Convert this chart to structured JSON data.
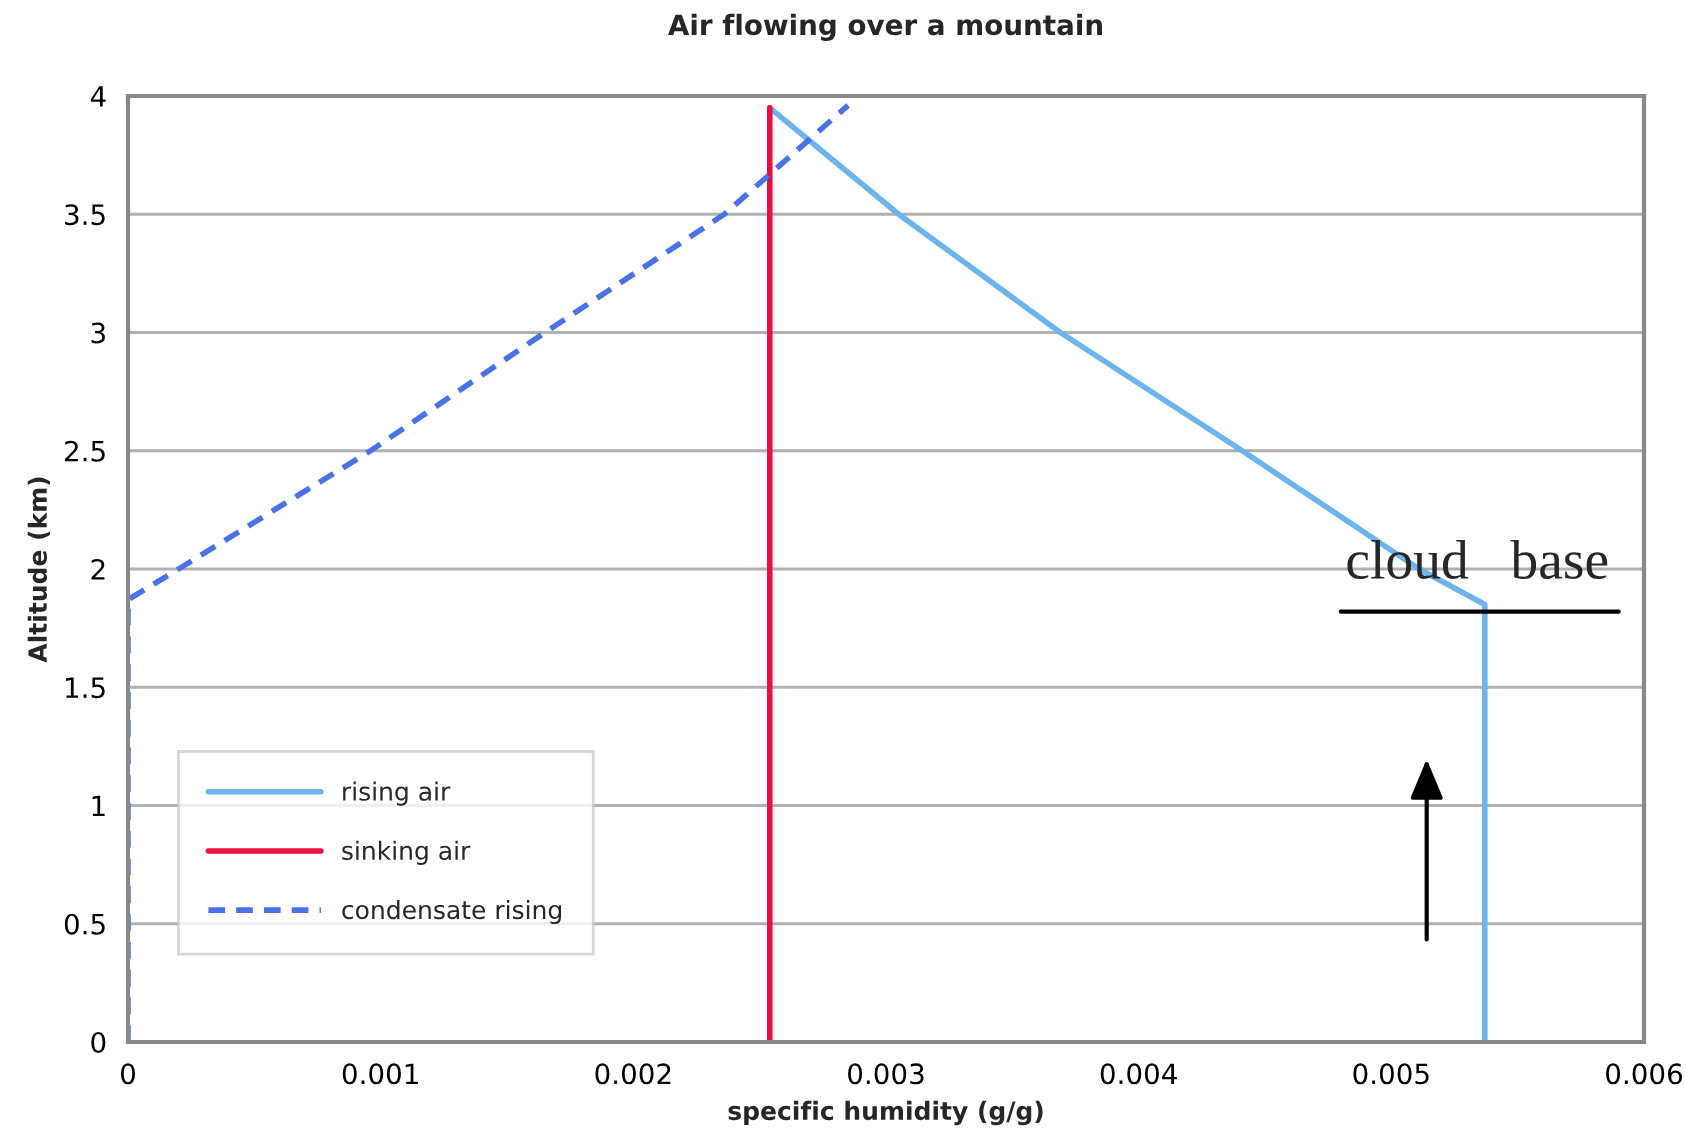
{
  "chart_data": {
    "type": "line",
    "title": "Air flowing over a mountain",
    "xlabel": "specific humidity (g/g)",
    "ylabel": "Altitude (km)",
    "series": [
      {
        "name": "rising air",
        "color": "#6cb4ee",
        "line_style": "solid",
        "x": [
          0.00537,
          0.00537,
          0.00511,
          0.00441,
          0.00369,
          0.00305,
          0.00254
        ],
        "values": [
          0,
          1.85,
          2.0,
          2.5,
          3.0,
          3.5,
          3.95
        ]
      },
      {
        "name": "sinking air",
        "color": "#e8103c",
        "line_style": "solid",
        "x": [
          0.00254,
          0.00254
        ],
        "values": [
          0,
          3.95
        ]
      },
      {
        "name": "condensate rising",
        "color": "#4a72e8",
        "line_style": "dashed",
        "x": [
          0,
          0,
          0.0002,
          0.00096,
          0.00165,
          0.00236,
          0.00285
        ],
        "values": [
          0,
          1.87,
          2.0,
          2.5,
          3.0,
          3.5,
          3.96
        ]
      }
    ],
    "annotations": [
      {
        "text": "cloud   base",
        "x": 0.00537,
        "y": 1.85
      }
    ],
    "xlim": [
      0,
      0.006
    ],
    "ylim": [
      0,
      4
    ],
    "xticks": [
      0,
      0.001,
      0.002,
      0.003,
      0.004,
      0.005,
      0.006
    ],
    "yticks": [
      0,
      0.5,
      1,
      1.5,
      2,
      2.5,
      3,
      3.5,
      4
    ],
    "grid": "y",
    "legend": "left",
    "marker": "none"
  }
}
